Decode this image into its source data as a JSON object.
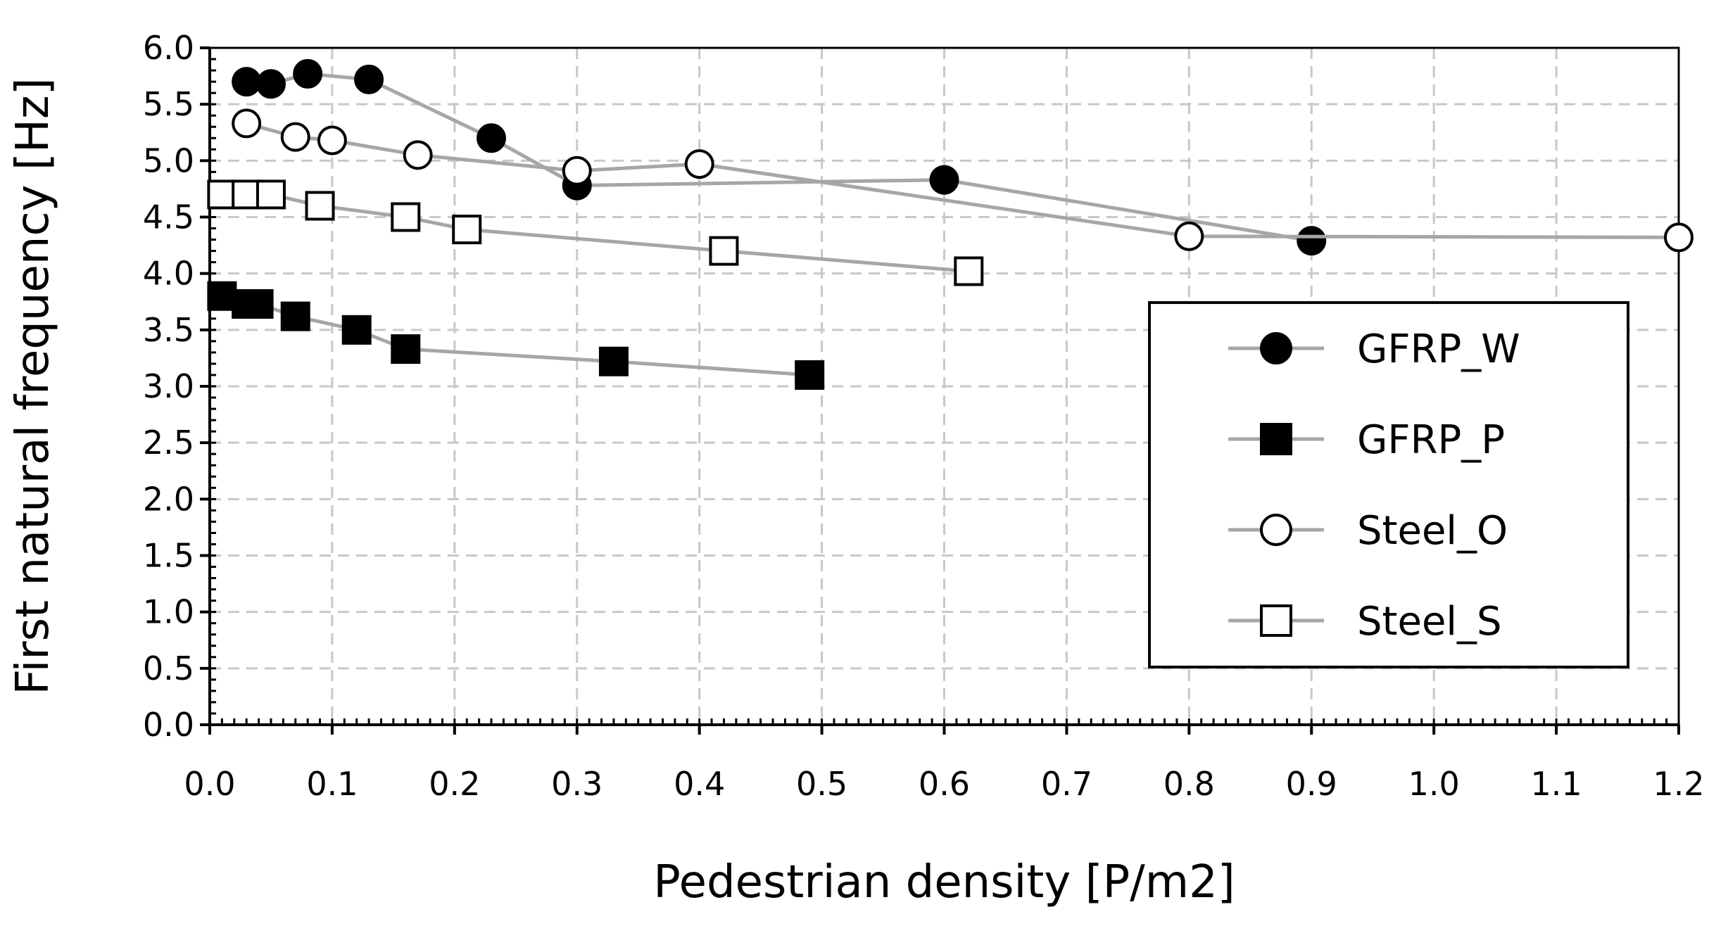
{
  "chart_data": {
    "type": "scatter",
    "title": "",
    "xlabel": "Pedestrian density [P/m2]",
    "ylabel": "First natural frequency [Hz]",
    "xlim": [
      0,
      1.2
    ],
    "ylim": [
      0,
      6.0
    ],
    "x_ticks": [
      "0.0",
      "0.1",
      "0.2",
      "0.3",
      "0.4",
      "0.5",
      "0.6",
      "0.7",
      "0.8",
      "0.9",
      "1.0",
      "1.1",
      "1.2"
    ],
    "y_ticks": [
      "0.0",
      "0.5",
      "1.0",
      "1.5",
      "2.0",
      "2.5",
      "3.0",
      "3.5",
      "4.0",
      "4.5",
      "5.0",
      "5.5",
      "6.0"
    ],
    "grid": true,
    "grid_style": "dashed",
    "legend_position": "right",
    "line_color": "#a6a6a6",
    "series": [
      {
        "name": "GFRP_W",
        "marker": "filled-circle",
        "x": [
          0.03,
          0.05,
          0.08,
          0.13,
          0.23,
          0.3,
          0.6,
          0.9
        ],
        "y": [
          5.7,
          5.68,
          5.77,
          5.72,
          5.2,
          4.78,
          4.83,
          4.29
        ]
      },
      {
        "name": "GFRP_P",
        "marker": "filled-square",
        "x": [
          0.01,
          0.03,
          0.04,
          0.07,
          0.12,
          0.16,
          0.33,
          0.49
        ],
        "y": [
          3.8,
          3.73,
          3.73,
          3.62,
          3.5,
          3.33,
          3.22,
          3.1
        ]
      },
      {
        "name": "Steel_O",
        "marker": "open-circle",
        "x": [
          0.03,
          0.07,
          0.1,
          0.17,
          0.3,
          0.4,
          0.8,
          1.2
        ],
        "y": [
          5.33,
          5.21,
          5.18,
          5.05,
          4.91,
          4.97,
          4.33,
          4.32
        ]
      },
      {
        "name": "Steel_S",
        "marker": "open-square",
        "x": [
          0.01,
          0.03,
          0.05,
          0.09,
          0.16,
          0.21,
          0.42,
          0.62
        ],
        "y": [
          4.7,
          4.7,
          4.7,
          4.6,
          4.5,
          4.39,
          4.2,
          4.02
        ]
      }
    ]
  }
}
